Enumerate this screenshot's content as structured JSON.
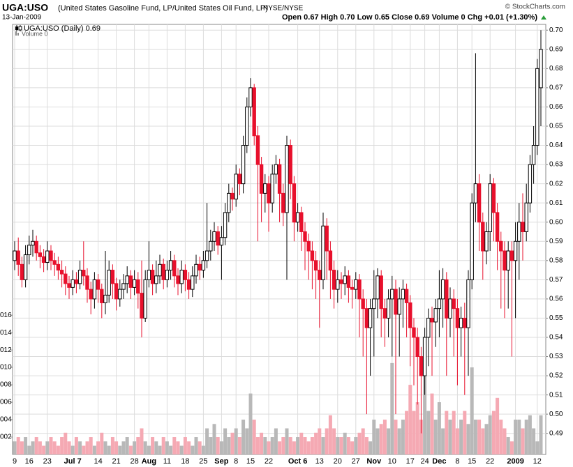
{
  "chart_data": {
    "type": "candlestick",
    "title": "UGA:USO",
    "subtitle": "(United States Gasoline Fund, LP/United States Oil Fund, LP)",
    "exchange": "NYSE/NYSE",
    "date": "13-Jan-2009",
    "quote": "Open 0.67  High 0.70  Low 0.65  Close 0.69  Volume 0  Chg +0.01 (+1.30%)",
    "credit": "© StockCharts.com",
    "legend": "UGA:USO (Daily) 0.69",
    "volume_legend": "Volume 0",
    "up_color": "#000000",
    "down_color": "#e8102c",
    "volume_up_color": "#b8b8b8",
    "volume_down_color": "#f5a9b3",
    "grid": true,
    "categories": [
      "9",
      null,
      null,
      null,
      "16",
      null,
      null,
      null,
      null,
      "23",
      null,
      null,
      null,
      null,
      null,
      null,
      "Jul 7",
      null,
      null,
      null,
      null,
      null,
      null,
      "14",
      null,
      null,
      null,
      null,
      "21",
      null,
      null,
      null,
      null,
      "28",
      null,
      null,
      null,
      "Aug",
      null,
      null,
      null,
      null,
      "11",
      null,
      null,
      null,
      null,
      "18",
      null,
      null,
      null,
      null,
      "25",
      null,
      null,
      null,
      null,
      "Sep",
      null,
      null,
      null,
      "8",
      null,
      null,
      null,
      "15",
      null,
      null,
      null,
      null,
      "22",
      null,
      null,
      null,
      null,
      null,
      null,
      null,
      "Oct 6",
      null,
      null,
      null,
      null,
      null,
      "13",
      null,
      null,
      null,
      null,
      "20",
      null,
      null,
      null,
      null,
      "27",
      null,
      null,
      null,
      null,
      "Nov",
      null,
      null,
      null,
      null,
      "10",
      null,
      null,
      null,
      null,
      "17",
      null,
      null,
      null,
      "24",
      null,
      null,
      null,
      "Dec",
      null,
      null,
      null,
      null,
      "8",
      null,
      null,
      null,
      "15",
      null,
      null,
      null,
      null,
      "22",
      null,
      null,
      null,
      null,
      null,
      null,
      "2009",
      null,
      null,
      null,
      null,
      null,
      "12",
      null
    ],
    "open": [
      0.58,
      0.585,
      0.578,
      0.57,
      0.583,
      0.588,
      0.59,
      0.584,
      0.582,
      0.579,
      0.585,
      0.58,
      0.578,
      0.575,
      0.573,
      0.568,
      0.566,
      0.57,
      0.568,
      0.575,
      0.572,
      0.565,
      0.56,
      0.57,
      0.565,
      0.558,
      0.562,
      0.575,
      0.568,
      0.56,
      0.565,
      0.568,
      0.572,
      0.566,
      0.57,
      0.563,
      0.55,
      0.57,
      0.575,
      0.568,
      0.572,
      0.578,
      0.57,
      0.575,
      0.58,
      0.572,
      0.568,
      0.575,
      0.57,
      0.565,
      0.572,
      0.578,
      0.575,
      0.58,
      0.585,
      0.59,
      0.595,
      0.588,
      0.592,
      0.605,
      0.615,
      0.612,
      0.625,
      0.62,
      0.64,
      0.66,
      0.67,
      0.645,
      0.63,
      0.615,
      0.62,
      0.61,
      0.625,
      0.63,
      0.615,
      0.605,
      0.64,
      0.62,
      0.6,
      0.605,
      0.595,
      0.59,
      0.585,
      0.58,
      0.575,
      0.57,
      0.598,
      0.585,
      0.575,
      0.565,
      0.57,
      0.568,
      0.572,
      0.566,
      0.565,
      0.57,
      0.56,
      0.555,
      0.545,
      0.555,
      0.56,
      0.572,
      0.555,
      0.55,
      0.56,
      0.565,
      0.552,
      0.56,
      0.565,
      0.558,
      0.545,
      0.54,
      0.53,
      0.52,
      0.54,
      0.55,
      0.548,
      0.555,
      0.56,
      0.57,
      0.55,
      0.56,
      0.555,
      0.545,
      0.55,
      0.545,
      0.57,
      0.61,
      0.62,
      0.6,
      0.585,
      0.595,
      0.62,
      0.605,
      0.59,
      0.585,
      0.575,
      0.585,
      0.58,
      0.59,
      0.6,
      0.595,
      0.61,
      0.63,
      0.64,
      0.67
    ],
    "high": [
      0.59,
      0.592,
      0.582,
      0.588,
      0.593,
      0.596,
      0.593,
      0.588,
      0.586,
      0.59,
      0.588,
      0.584,
      0.582,
      0.58,
      0.577,
      0.572,
      0.575,
      0.574,
      0.58,
      0.59,
      0.576,
      0.569,
      0.574,
      0.573,
      0.568,
      0.585,
      0.58,
      0.578,
      0.571,
      0.57,
      0.573,
      0.577,
      0.575,
      0.575,
      0.574,
      0.58,
      0.575,
      0.59,
      0.578,
      0.58,
      0.583,
      0.581,
      0.58,
      0.585,
      0.583,
      0.576,
      0.58,
      0.578,
      0.574,
      0.577,
      0.583,
      0.582,
      0.585,
      0.61,
      0.596,
      0.6,
      0.598,
      0.598,
      0.61,
      0.62,
      0.618,
      0.63,
      0.628,
      0.645,
      0.665,
      0.675,
      0.672,
      0.65,
      0.634,
      0.625,
      0.624,
      0.63,
      0.635,
      0.633,
      0.62,
      0.645,
      0.643,
      0.624,
      0.61,
      0.608,
      0.6,
      0.594,
      0.59,
      0.585,
      0.58,
      0.605,
      0.602,
      0.59,
      0.58,
      0.575,
      0.574,
      0.577,
      0.575,
      0.57,
      0.574,
      0.573,
      0.565,
      0.56,
      0.56,
      0.575,
      0.576,
      0.575,
      0.56,
      0.565,
      0.572,
      0.57,
      0.566,
      0.57,
      0.568,
      0.562,
      0.55,
      0.545,
      0.535,
      0.545,
      0.555,
      0.556,
      0.56,
      0.575,
      0.576,
      0.574,
      0.566,
      0.565,
      0.56,
      0.556,
      0.558,
      0.575,
      0.615,
      0.688,
      0.625,
      0.605,
      0.6,
      0.625,
      0.623,
      0.61,
      0.595,
      0.59,
      0.59,
      0.59,
      0.6,
      0.61,
      0.615,
      0.62,
      0.635,
      0.65,
      0.685,
      0.7
    ],
    "low": [
      0.575,
      0.572,
      0.566,
      0.566,
      0.578,
      0.582,
      0.58,
      0.576,
      0.574,
      0.575,
      0.575,
      0.572,
      0.57,
      0.566,
      0.562,
      0.56,
      0.562,
      0.563,
      0.565,
      0.567,
      0.558,
      0.552,
      0.555,
      0.558,
      0.55,
      0.552,
      0.558,
      0.56,
      0.554,
      0.556,
      0.56,
      0.563,
      0.56,
      0.562,
      0.555,
      0.54,
      0.548,
      0.566,
      0.562,
      0.563,
      0.568,
      0.565,
      0.566,
      0.57,
      0.566,
      0.562,
      0.563,
      0.564,
      0.56,
      0.561,
      0.568,
      0.57,
      0.571,
      0.576,
      0.58,
      0.585,
      0.583,
      0.57,
      0.588,
      0.6,
      0.606,
      0.608,
      0.614,
      0.615,
      0.636,
      0.655,
      0.64,
      0.59,
      0.6,
      0.605,
      0.595,
      0.605,
      0.62,
      0.6,
      0.598,
      0.57,
      0.612,
      0.59,
      0.595,
      0.585,
      0.575,
      0.57,
      0.565,
      0.56,
      0.545,
      0.565,
      0.57,
      0.56,
      0.555,
      0.558,
      0.56,
      0.562,
      0.558,
      0.555,
      0.56,
      0.54,
      0.53,
      0.5,
      0.52,
      0.53,
      0.55,
      0.54,
      0.535,
      0.54,
      0.53,
      0.5,
      0.53,
      0.545,
      0.54,
      0.525,
      0.515,
      0.505,
      0.49,
      0.51,
      0.525,
      0.52,
      0.535,
      0.54,
      0.545,
      0.52,
      0.54,
      0.53,
      0.515,
      0.53,
      0.51,
      0.52,
      0.565,
      0.6,
      0.585,
      0.57,
      0.578,
      0.585,
      0.59,
      0.575,
      0.555,
      0.55,
      0.555,
      0.53,
      0.55,
      0.57,
      0.58,
      0.59,
      0.605,
      0.62,
      0.635,
      0.65
    ],
    "close": [
      0.585,
      0.578,
      0.57,
      0.583,
      0.588,
      0.59,
      0.584,
      0.582,
      0.579,
      0.585,
      0.58,
      0.578,
      0.575,
      0.573,
      0.568,
      0.566,
      0.57,
      0.568,
      0.575,
      0.572,
      0.565,
      0.56,
      0.57,
      0.565,
      0.558,
      0.562,
      0.575,
      0.568,
      0.56,
      0.565,
      0.568,
      0.572,
      0.566,
      0.57,
      0.563,
      0.55,
      0.57,
      0.575,
      0.568,
      0.572,
      0.578,
      0.57,
      0.575,
      0.58,
      0.572,
      0.568,
      0.575,
      0.57,
      0.565,
      0.572,
      0.578,
      0.575,
      0.58,
      0.585,
      0.59,
      0.595,
      0.588,
      0.592,
      0.605,
      0.615,
      0.612,
      0.625,
      0.62,
      0.64,
      0.66,
      0.67,
      0.645,
      0.63,
      0.615,
      0.62,
      0.61,
      0.625,
      0.63,
      0.615,
      0.605,
      0.64,
      0.62,
      0.6,
      0.605,
      0.595,
      0.59,
      0.585,
      0.58,
      0.575,
      0.57,
      0.598,
      0.585,
      0.575,
      0.565,
      0.57,
      0.568,
      0.572,
      0.566,
      0.565,
      0.57,
      0.56,
      0.555,
      0.545,
      0.555,
      0.56,
      0.572,
      0.555,
      0.55,
      0.56,
      0.565,
      0.552,
      0.56,
      0.565,
      0.558,
      0.545,
      0.54,
      0.53,
      0.52,
      0.54,
      0.55,
      0.548,
      0.555,
      0.56,
      0.57,
      0.55,
      0.56,
      0.555,
      0.545,
      0.55,
      0.545,
      0.57,
      0.61,
      0.62,
      0.6,
      0.585,
      0.595,
      0.62,
      0.605,
      0.59,
      0.585,
      0.575,
      0.585,
      0.58,
      0.59,
      0.6,
      0.595,
      0.61,
      0.63,
      0.64,
      0.68,
      0.69
    ],
    "volume": [
      1.5,
      2,
      1.5,
      2,
      1,
      1.5,
      2,
      1.5,
      1,
      1.5,
      2,
      1.5,
      1,
      2,
      2.5,
      1.5,
      1,
      2,
      1.5,
      1,
      1.5,
      2,
      1,
      1.5,
      2.5,
      1.5,
      1,
      2,
      1.5,
      1,
      1.5,
      2,
      1,
      1.5,
      2,
      3,
      1.5,
      1,
      2,
      1.5,
      1,
      2,
      1.5,
      1,
      2,
      1.5,
      1,
      2,
      1.5,
      1,
      2,
      1.5,
      1,
      3,
      2,
      3.5,
      2,
      1.5,
      3,
      2,
      2.5,
      3,
      2,
      4,
      3,
      7,
      4,
      2,
      2.5,
      2,
      1.5,
      2,
      3,
      1.5,
      2,
      3,
      2,
      1.5,
      2,
      2.5,
      2,
      1.5,
      2,
      2.5,
      3,
      2,
      3,
      4.5,
      3,
      2,
      2,
      2.5,
      2,
      1.5,
      2,
      2.5,
      3,
      2,
      1.5,
      4,
      3,
      3.5,
      4,
      3,
      10.5,
      4,
      3,
      4,
      5,
      8,
      5,
      6,
      4,
      9,
      5,
      7,
      4,
      6,
      3,
      5,
      4,
      5,
      3,
      4,
      5,
      3.5,
      10,
      4,
      4,
      3,
      3.5,
      4.5,
      5,
      6.5,
      4,
      3,
      2,
      1.5,
      4,
      4,
      3,
      4,
      4.5,
      3,
      1.5,
      4.5
    ],
    "ylim": [
      0.479,
      0.703
    ],
    "yticks": [
      0.49,
      {
        "value": 0.5,
        "label": "0.50"
      },
      0.51,
      0.52,
      0.53,
      0.54,
      0.55,
      0.56,
      0.57,
      0.58,
      0.59,
      {
        "value": 0.6,
        "label": "0.60"
      },
      0.61,
      0.62,
      0.63,
      0.64,
      0.65,
      0.66,
      0.67,
      0.68,
      0.69,
      {
        "value": 0.7,
        "label": "0.70"
      }
    ],
    "y2lim": [
      0,
      49.4
    ],
    "y2ticks": [
      {
        "value": 2,
        "label": "002"
      },
      {
        "value": 4,
        "label": "004"
      },
      {
        "value": 6,
        "label": "006"
      },
      {
        "value": 8,
        "label": "008"
      },
      {
        "value": 10,
        "label": "010"
      },
      {
        "value": 12,
        "label": "012"
      },
      {
        "value": 14,
        "label": "014"
      },
      {
        "value": 16,
        "label": "016"
      }
    ]
  }
}
